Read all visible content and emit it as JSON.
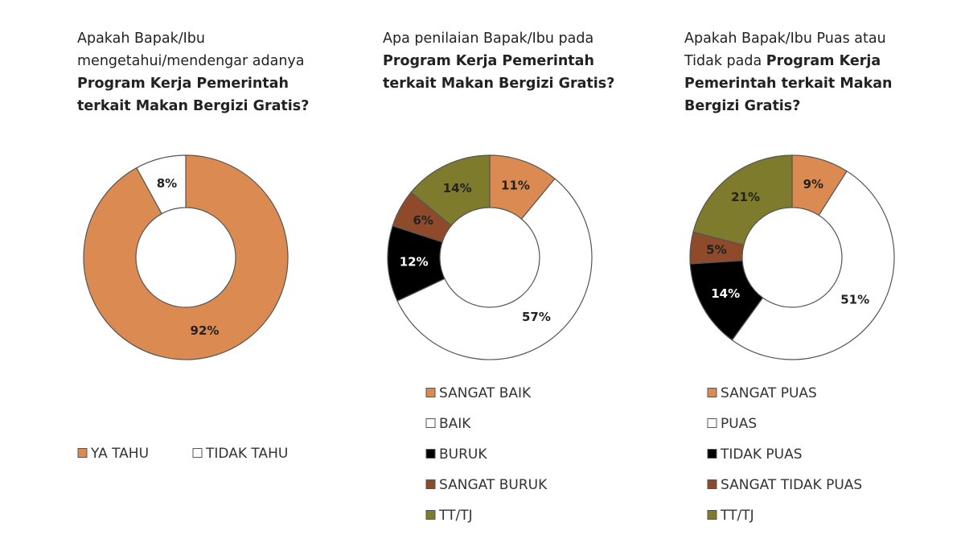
{
  "chart_data": [
    {
      "type": "donut",
      "question": "Apakah Bapak/Ibu mengetahui/mendengar adanya",
      "question_bold": "Program Kerja Pemerintah terkait Makan Bergizi Gratis?",
      "categories": [
        "YA TAHU",
        "TIDAK TAHU"
      ],
      "values": [
        92,
        8
      ],
      "value_labels": [
        "92%",
        "8%"
      ],
      "colors": [
        "#db8b52",
        "#ffffff"
      ],
      "legend_layout": "horizontal"
    },
    {
      "type": "donut",
      "question": "Apa penilaian Bapak/Ibu pada",
      "question_bold": "Program Kerja Pemerintah terkait Makan Bergizi Gratis?",
      "categories": [
        "SANGAT BAIK",
        "BAIK",
        "BURUK",
        "SANGAT BURUK",
        "TT/TJ"
      ],
      "values": [
        11,
        57,
        12,
        6,
        14
      ],
      "value_labels": [
        "11%",
        "57%",
        "12%",
        "6%",
        "14%"
      ],
      "colors": [
        "#db8b52",
        "#ffffff",
        "#000000",
        "#8e4a2a",
        "#7e7b2c"
      ],
      "legend_layout": "vertical"
    },
    {
      "type": "donut",
      "question": "Apakah Bapak/Ibu Puas atau Tidak pada",
      "question_bold": "Program Kerja Pemerintah terkait Makan Bergizi Gratis?",
      "categories": [
        "SANGAT PUAS",
        "PUAS",
        "TIDAK PUAS",
        "SANGAT TIDAK PUAS",
        "TT/TJ"
      ],
      "values": [
        9,
        51,
        14,
        5,
        21
      ],
      "value_labels": [
        "9%",
        "51%",
        "14%",
        "5%",
        "21%"
      ],
      "colors": [
        "#db8b52",
        "#ffffff",
        "#000000",
        "#8e4a2a",
        "#7e7b2c"
      ],
      "legend_layout": "vertical"
    }
  ]
}
